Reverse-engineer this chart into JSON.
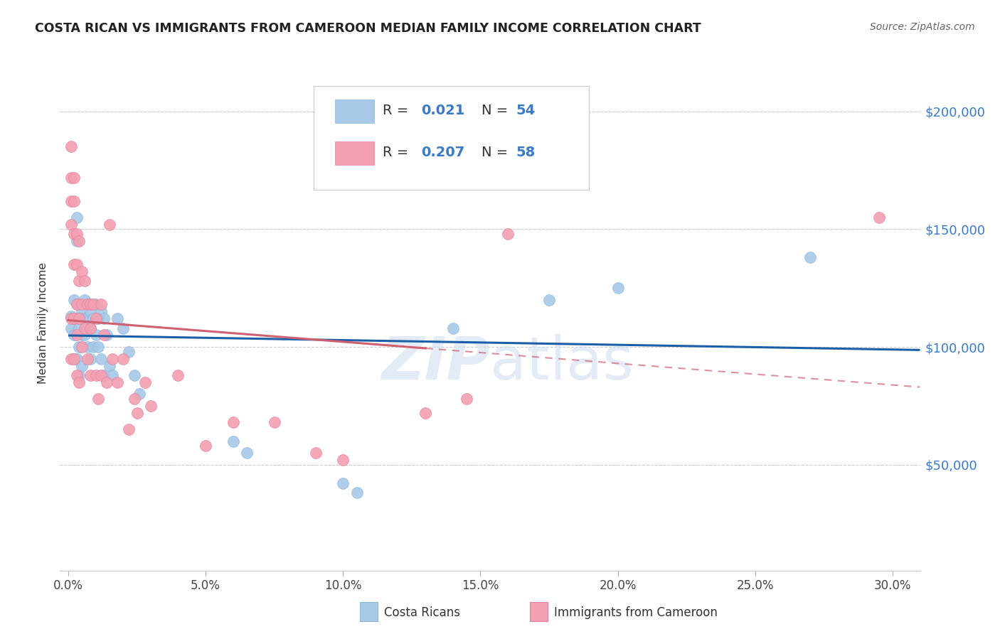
{
  "title": "COSTA RICAN VS IMMIGRANTS FROM CAMEROON MEDIAN FAMILY INCOME CORRELATION CHART",
  "source": "Source: ZipAtlas.com",
  "xlabel_ticks": [
    "0.0%",
    "5.0%",
    "10.0%",
    "15.0%",
    "20.0%",
    "25.0%",
    "30.0%"
  ],
  "xlabel_vals": [
    0.0,
    0.05,
    0.1,
    0.15,
    0.2,
    0.25,
    0.3
  ],
  "ylabel_ticks": [
    "$50,000",
    "$100,000",
    "$150,000",
    "$200,000"
  ],
  "ylabel_vals": [
    50000,
    100000,
    150000,
    200000
  ],
  "xlim": [
    -0.003,
    0.31
  ],
  "ylim": [
    5000,
    215000
  ],
  "ylabel": "Median Family Income",
  "blue_color": "#a8c8e8",
  "pink_color": "#f4a0b0",
  "trend_blue": "#1a5fa8",
  "trend_pink": "#d06070",
  "watermark_color": "#d0dff0",
  "blue_scatter_x": [
    0.001,
    0.001,
    0.002,
    0.002,
    0.002,
    0.003,
    0.003,
    0.003,
    0.003,
    0.003,
    0.004,
    0.004,
    0.004,
    0.004,
    0.004,
    0.005,
    0.005,
    0.005,
    0.005,
    0.006,
    0.006,
    0.006,
    0.007,
    0.007,
    0.007,
    0.008,
    0.008,
    0.008,
    0.009,
    0.009,
    0.01,
    0.01,
    0.011,
    0.011,
    0.012,
    0.012,
    0.013,
    0.013,
    0.014,
    0.015,
    0.016,
    0.018,
    0.02,
    0.022,
    0.024,
    0.026,
    0.06,
    0.065,
    0.1,
    0.105,
    0.14,
    0.175,
    0.2,
    0.27
  ],
  "blue_scatter_y": [
    113000,
    108000,
    120000,
    112000,
    105000,
    155000,
    145000,
    118000,
    112000,
    95000,
    118000,
    112000,
    108000,
    100000,
    88000,
    115000,
    112000,
    105000,
    92000,
    120000,
    112000,
    105000,
    118000,
    112000,
    100000,
    115000,
    108000,
    95000,
    112000,
    100000,
    118000,
    105000,
    112000,
    100000,
    115000,
    95000,
    112000,
    88000,
    105000,
    92000,
    88000,
    112000,
    108000,
    98000,
    88000,
    80000,
    60000,
    55000,
    42000,
    38000,
    108000,
    120000,
    125000,
    138000
  ],
  "pink_scatter_x": [
    0.001,
    0.001,
    0.001,
    0.001,
    0.001,
    0.001,
    0.002,
    0.002,
    0.002,
    0.002,
    0.002,
    0.002,
    0.003,
    0.003,
    0.003,
    0.003,
    0.003,
    0.004,
    0.004,
    0.004,
    0.004,
    0.005,
    0.005,
    0.005,
    0.006,
    0.006,
    0.007,
    0.007,
    0.008,
    0.008,
    0.008,
    0.009,
    0.01,
    0.01,
    0.011,
    0.012,
    0.012,
    0.013,
    0.014,
    0.015,
    0.016,
    0.018,
    0.02,
    0.022,
    0.024,
    0.025,
    0.028,
    0.03,
    0.04,
    0.05,
    0.06,
    0.075,
    0.09,
    0.1,
    0.13,
    0.145,
    0.16,
    0.295
  ],
  "pink_scatter_y": [
    185000,
    172000,
    162000,
    152000,
    112000,
    95000,
    172000,
    162000,
    148000,
    135000,
    112000,
    95000,
    148000,
    135000,
    118000,
    105000,
    88000,
    145000,
    128000,
    112000,
    85000,
    132000,
    118000,
    100000,
    128000,
    108000,
    118000,
    95000,
    118000,
    108000,
    88000,
    118000,
    112000,
    88000,
    78000,
    118000,
    88000,
    105000,
    85000,
    152000,
    95000,
    85000,
    95000,
    65000,
    78000,
    72000,
    85000,
    75000,
    88000,
    58000,
    68000,
    68000,
    55000,
    52000,
    72000,
    78000,
    148000,
    155000
  ]
}
